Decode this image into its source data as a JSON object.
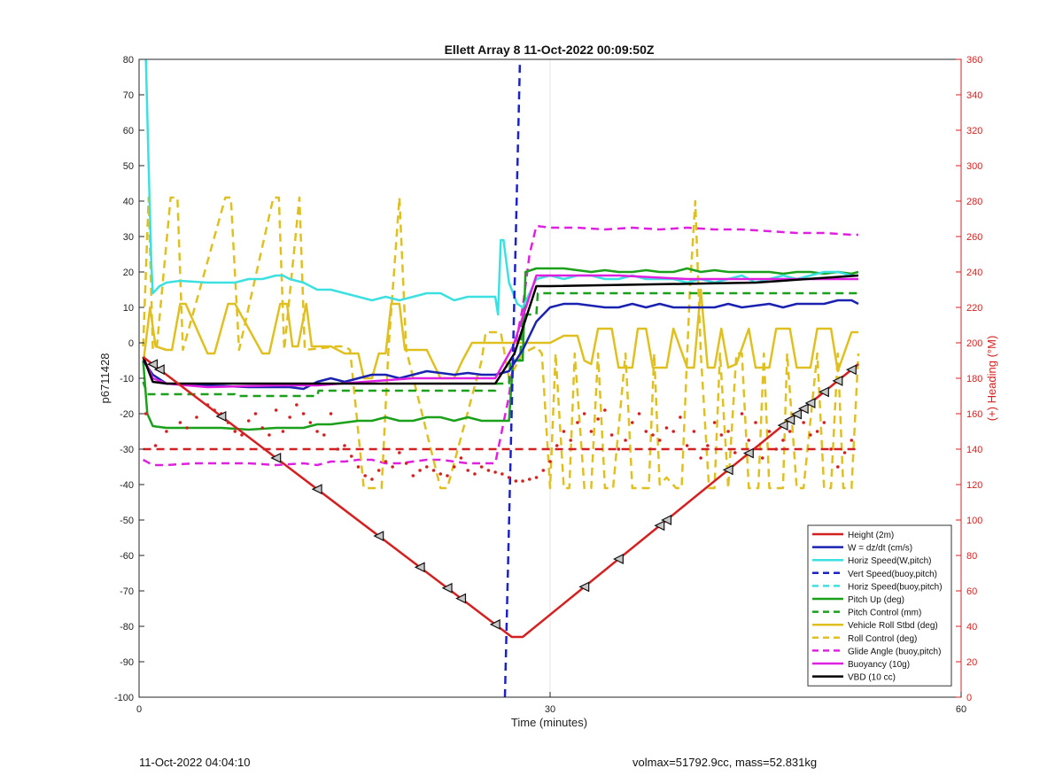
{
  "chart_data": {
    "type": "line",
    "title": "Ellett Array 8 11-Oct-2022 00:09:50Z",
    "xlabel": "Time (minutes)",
    "ylabel": "p6711428",
    "y2label": "(+) Heading (°M)",
    "xlim": [
      0,
      60
    ],
    "ylim": [
      -100,
      80
    ],
    "y2lim": [
      0,
      360
    ],
    "xticks": [
      0,
      30,
      60
    ],
    "yticks": [
      -100,
      -90,
      -80,
      -70,
      -60,
      -50,
      -40,
      -30,
      -20,
      -10,
      0,
      10,
      20,
      30,
      40,
      50,
      60,
      70,
      80
    ],
    "y2ticks": [
      0,
      20,
      40,
      60,
      80,
      100,
      120,
      140,
      160,
      180,
      200,
      220,
      240,
      260,
      280,
      300,
      320,
      340,
      360
    ],
    "grid": true,
    "legend_position": "bottom-right",
    "colors": {
      "height": "#d42020",
      "w": "#1a22b0",
      "horiz_w": "#3de0e0",
      "vert_buoy": "#1a22c8",
      "horiz_buoy": "#3de0e0",
      "pitch": "#1aa01a",
      "pitch_ctrl": "#1aa01a",
      "roll": "#e0c020",
      "roll_ctrl": "#e0c020",
      "glide": "#e020e0",
      "buoyancy": "#e020e0",
      "vbd": "#000000",
      "heading": "#d42020",
      "y2axis": "#d42020"
    },
    "series": [
      {
        "key": "height",
        "name": "Height (2m)",
        "style": "solid",
        "axis": "left",
        "x": [
          0.3,
          27.2,
          28,
          52.5
        ],
        "y": [
          -4,
          -83,
          -83,
          -6
        ]
      },
      {
        "key": "w",
        "name": "W = dz/dt (cm/s)",
        "style": "solid",
        "axis": "left",
        "x": [
          0.3,
          1,
          2,
          5,
          8,
          11,
          12,
          13,
          14,
          15,
          16,
          17,
          18,
          19,
          20,
          21,
          22,
          23,
          24,
          25,
          26,
          27,
          28,
          29,
          30,
          31,
          32,
          33,
          34,
          35,
          36,
          37,
          38,
          39,
          40,
          41,
          42,
          43,
          44,
          45,
          46,
          47,
          48,
          49,
          50,
          51,
          52,
          52.5
        ],
        "y": [
          -5,
          -9,
          -11.5,
          -12,
          -12.5,
          -12.5,
          -13,
          -11,
          -10,
          -11,
          -10,
          -9,
          -9,
          -10,
          -9,
          -8,
          -8.5,
          -9,
          -8.5,
          -9,
          -9,
          -8,
          -2,
          6,
          10,
          11,
          11,
          10.5,
          10,
          10,
          11,
          10,
          11,
          10,
          10,
          10,
          10,
          11,
          10,
          10.5,
          11,
          10,
          11,
          11,
          11,
          12,
          12,
          11
        ]
      },
      {
        "key": "horiz_w",
        "name": "Horiz Speed(W,pitch)",
        "style": "solid",
        "axis": "left",
        "x": [
          0.5,
          0.7,
          0.9,
          1,
          1.5,
          2,
          3,
          5,
          7,
          8,
          9,
          10,
          10.5,
          11,
          12,
          13,
          14,
          15,
          16,
          17,
          18,
          19,
          20,
          21,
          22,
          23,
          24,
          25,
          25.5,
          26,
          26.2,
          26.4,
          26.6,
          27,
          27.3,
          27.6,
          28,
          29,
          30,
          31,
          32,
          33,
          34,
          35,
          36,
          37,
          38,
          39,
          40,
          41,
          42,
          43,
          44,
          45,
          46,
          47,
          48,
          49,
          50,
          51,
          52
        ],
        "y": [
          80,
          50,
          22,
          14,
          16,
          17,
          17.5,
          17,
          17,
          18,
          18,
          19,
          19,
          18,
          17,
          15,
          15,
          14,
          13,
          12,
          13,
          12,
          13,
          14,
          14,
          12,
          13,
          13,
          13,
          13,
          8,
          29,
          29,
          17,
          14,
          11,
          10,
          18,
          19,
          18,
          19,
          19,
          18,
          18,
          19,
          18,
          18,
          18,
          17,
          18,
          17,
          18,
          19,
          17,
          18,
          19,
          18,
          19,
          20,
          20,
          19
        ]
      },
      {
        "key": "vert_buoy",
        "name": "Vert Speed(buoy,pitch)",
        "style": "dashed",
        "axis": "left",
        "x": [
          26.7,
          27.8
        ],
        "y": [
          -100,
          80
        ]
      },
      {
        "key": "horiz_buoy",
        "name": "Horiz Speed(buoy,pitch)",
        "style": "dashed",
        "axis": "left",
        "x": [],
        "y": []
      },
      {
        "key": "pitch",
        "name": "Pitch Up (deg)",
        "style": "solid",
        "axis": "left",
        "x": [
          0.3,
          0.6,
          1,
          2,
          4,
          6,
          8,
          10,
          12,
          13,
          14,
          15,
          16,
          17,
          18,
          19,
          20,
          21,
          22,
          23,
          24,
          25,
          26,
          27,
          27.3,
          28,
          28.2,
          29,
          30,
          31,
          32,
          33,
          34,
          35,
          36,
          37,
          38,
          39,
          40,
          41,
          42,
          43,
          44,
          45,
          46,
          47,
          48,
          49,
          50,
          51,
          52,
          52.5
        ],
        "y": [
          -5,
          -20,
          -23.5,
          -24,
          -24,
          -24,
          -24.5,
          -24,
          -24,
          -23,
          -23,
          -22.5,
          -22,
          -22,
          -21,
          -22,
          -22,
          -21,
          -21,
          -22,
          -21,
          -22,
          -22,
          -22,
          -5,
          -5,
          20,
          21,
          21,
          21,
          20.5,
          20,
          20.5,
          20,
          20,
          20.5,
          20,
          20,
          21,
          20,
          20.5,
          20,
          20,
          20,
          20,
          19.5,
          20,
          20,
          19.5,
          20,
          19.5,
          20
        ]
      },
      {
        "key": "pitch_ctrl",
        "name": "Pitch Control (mm)",
        "style": "dashed",
        "axis": "left",
        "x": [
          0.3,
          0.6,
          7,
          7.1,
          13,
          13.1,
          26,
          26.1,
          27,
          27.1,
          27.8,
          28,
          29,
          29.1,
          52.5
        ],
        "y": [
          -11,
          -14.5,
          -14.5,
          -15,
          -15,
          -13.5,
          -13.5,
          -11.5,
          -11.5,
          -5,
          -5,
          8,
          8,
          14,
          14
        ]
      },
      {
        "key": "roll",
        "name": "Vehicle Roll Stbd (deg)",
        "style": "solid",
        "axis": "left",
        "x": [
          0.3,
          0.8,
          1.2,
          2,
          2.4,
          3,
          3.4,
          5,
          5.5,
          6.5,
          7,
          9,
          9.5,
          10.3,
          10.8,
          11.2,
          11.6,
          12.2,
          12.6,
          13.5,
          14,
          15,
          16,
          16.4,
          17,
          17.5,
          18,
          18.4,
          19,
          19.4,
          20,
          21,
          22,
          23,
          23.6,
          24.3,
          25,
          26,
          27,
          28,
          29,
          30,
          31,
          32,
          32.5,
          33,
          33.5,
          34.5,
          35,
          36,
          36.4,
          37,
          37.5,
          38.5,
          39,
          40,
          40.5,
          41,
          41.5,
          42,
          42.5,
          43,
          43.6,
          44.5,
          45,
          46,
          46.5,
          47.5,
          48,
          49,
          49.5,
          50.5,
          51,
          52,
          52.5
        ],
        "y": [
          -6,
          10,
          -1,
          -2,
          -2,
          11,
          11,
          -3,
          -3,
          11,
          11,
          -3,
          -3,
          11,
          11,
          -1,
          -1,
          11,
          -1,
          -1,
          -1,
          -3,
          -3,
          -10,
          -10,
          -3,
          -3,
          11,
          11,
          -2,
          -2,
          -2,
          -10,
          -10,
          -5,
          0,
          0,
          0,
          0,
          0,
          0,
          0,
          2,
          2,
          -5,
          -6,
          4,
          4,
          -7,
          -7,
          4,
          4,
          -7,
          -7,
          4,
          -7,
          -7,
          15,
          -7,
          -7,
          4,
          -7,
          -6,
          4,
          -7,
          -7,
          4,
          4,
          -7,
          -7,
          4,
          4,
          -8,
          3,
          3
        ]
      },
      {
        "key": "roll_ctrl",
        "name": "Roll Control (deg)",
        "style": "dashed",
        "axis": "left",
        "x": [
          0.3,
          0.7,
          1,
          1.3,
          2.3,
          2.8,
          3.2,
          6.3,
          6.7,
          7.3,
          9.8,
          10.2,
          10.6,
          11.7,
          12.1,
          14.5,
          15,
          15.4,
          16.4,
          17.7,
          18.2,
          19,
          19.5,
          22,
          22.5,
          25,
          25.3,
          26.4,
          27,
          28,
          29,
          29.4,
          30,
          30.4,
          31,
          31.4,
          31.8,
          32.5,
          33,
          33.5,
          34,
          34.6,
          35.5,
          36,
          37.2,
          37.6,
          38,
          38.5,
          39.2,
          39.6,
          40.2,
          40.6,
          41,
          41.6,
          42,
          42.4,
          43,
          43.6,
          44,
          44.5,
          45.2,
          45.6,
          46,
          47,
          47.3,
          48,
          48.5,
          49.5,
          50,
          50.5,
          51,
          51.4,
          52,
          52.5
        ],
        "y": [
          -1,
          41,
          -2,
          -1,
          41,
          41,
          -2,
          41,
          41,
          -2,
          41,
          41,
          -2,
          41,
          -2,
          -1,
          -1,
          -2,
          -41,
          -41,
          -2,
          41,
          -2,
          -41,
          -41,
          -5,
          3,
          3,
          -10,
          -3,
          -1,
          -3,
          -41,
          -3,
          -41,
          -41,
          -3,
          -41,
          -41,
          -3,
          -41,
          -41,
          -3,
          -41,
          -41,
          -3,
          -40,
          -38,
          -41,
          -41,
          15,
          40,
          -3,
          -41,
          -41,
          -3,
          -41,
          -3,
          -3,
          -41,
          -41,
          -3,
          -41,
          -41,
          -3,
          -41,
          -41,
          -3,
          -41,
          -41,
          -3,
          -41,
          -41,
          -3
        ]
      },
      {
        "key": "glide",
        "name": "Glide Angle (buoy,pitch)",
        "style": "dashed",
        "axis": "left",
        "x": [
          0.3,
          1,
          2,
          4,
          6,
          8,
          10,
          12,
          13,
          14,
          15,
          16,
          17,
          18,
          19,
          20,
          21,
          22,
          23,
          24,
          25,
          26,
          27,
          27.5,
          28,
          28.5,
          29,
          30,
          32,
          34,
          36,
          38,
          40,
          42,
          44,
          46,
          48,
          50,
          52,
          52.5
        ],
        "y": [
          -33,
          -34.5,
          -34.5,
          -34,
          -34,
          -34,
          -34.5,
          -34,
          -34.5,
          -33.5,
          -33.5,
          -33,
          -33,
          -34,
          -34,
          -33.5,
          -33,
          -33,
          -33.5,
          -34,
          -34,
          -34,
          -15,
          0,
          10,
          25,
          33,
          32.5,
          32.5,
          32,
          32.5,
          32,
          32.5,
          32,
          32,
          31.5,
          31,
          31,
          30.5,
          30.5
        ]
      },
      {
        "key": "buoyancy",
        "name": "Buoyancy (10g)",
        "style": "solid",
        "axis": "left",
        "x": [
          0.3,
          1,
          2,
          5,
          10,
          13,
          20,
          26,
          27.3,
          29,
          30,
          35,
          40,
          45,
          50,
          52.5
        ],
        "y": [
          -4,
          -10,
          -11.5,
          -12.5,
          -12,
          -12,
          -10,
          -10,
          -1,
          19,
          19,
          19,
          18,
          18,
          18,
          18
        ]
      },
      {
        "key": "vbd",
        "name": "VBD (10 cc)",
        "style": "solid",
        "axis": "left",
        "x": [
          0.3,
          1,
          2,
          10,
          20,
          26,
          27.4,
          29,
          30,
          45,
          52.5
        ],
        "y": [
          -4,
          -11,
          -11.5,
          -11.5,
          -11.5,
          -11.5,
          -3,
          16,
          16,
          17,
          19
        ]
      },
      {
        "key": "heading",
        "name": "",
        "style": "dashed",
        "axis": "right",
        "x": [
          0.3,
          52.5
        ],
        "y": [
          140,
          140
        ]
      }
    ],
    "heading_points": {
      "x": [
        0.5,
        1.2,
        2,
        3,
        3.5,
        4.2,
        5,
        5.5,
        6,
        6.5,
        7,
        7.5,
        8,
        8.5,
        9,
        9.5,
        10,
        10.5,
        11,
        11.5,
        12,
        12.5,
        13,
        13.5,
        14,
        14.5,
        15,
        15.5,
        16,
        16.5,
        17,
        17.5,
        18,
        18.5,
        19,
        19.5,
        20,
        20.5,
        21,
        21.5,
        22,
        22.5,
        23,
        23.5,
        24,
        24.5,
        25,
        25.5,
        26,
        26.5,
        27,
        27.5,
        28,
        28.5,
        29,
        29.5,
        30,
        30.5,
        31,
        31.5,
        32,
        32.5,
        33,
        33.5,
        34,
        34.5,
        35,
        35.5,
        36,
        36.5,
        37,
        37.5,
        38,
        38.5,
        39,
        39.5,
        40,
        40.5,
        41,
        41.5,
        42,
        42.5,
        43,
        43.5,
        44,
        44.5,
        45,
        45.5,
        46,
        46.5,
        47,
        47.5,
        48,
        48.5,
        49,
        49.5,
        50,
        50.5,
        51,
        51.5,
        52
      ],
      "y": [
        160,
        142,
        150,
        155,
        152,
        158,
        165,
        162,
        160,
        155,
        150,
        148,
        156,
        160,
        152,
        148,
        162,
        150,
        158,
        165,
        160,
        155,
        150,
        148,
        160,
        140,
        142,
        136,
        130,
        125,
        123,
        128,
        133,
        130,
        138,
        132,
        125,
        128,
        130,
        128,
        126,
        125,
        130,
        135,
        128,
        126,
        130,
        128,
        127,
        126,
        124,
        122,
        122,
        123,
        124,
        128,
        133,
        142,
        150,
        145,
        155,
        160,
        150,
        157,
        162,
        148,
        140,
        145,
        155,
        160,
        150,
        148,
        145,
        152,
        150,
        158,
        142,
        150,
        135,
        142,
        155,
        148,
        150,
        138,
        160,
        145,
        155,
        135,
        150,
        140,
        145,
        150,
        160,
        155,
        148,
        150,
        155,
        140,
        130,
        138,
        145
      ]
    },
    "height_markers_x": [
      1,
      1.5,
      6,
      10,
      13,
      17.5,
      20.5,
      22.5,
      23.5,
      26,
      32.5,
      35,
      38,
      38.5,
      43,
      44.5,
      47,
      47.5,
      48,
      48.5,
      49,
      50,
      51,
      52
    ],
    "legend_order": [
      "height",
      "w",
      "horiz_w",
      "vert_buoy",
      "horiz_buoy",
      "pitch",
      "pitch_ctrl",
      "roll",
      "roll_ctrl",
      "glide",
      "buoyancy",
      "vbd"
    ]
  },
  "footer": {
    "timestamp": "11-Oct-2022 04:04:10",
    "summary": "volmax=51792.9cc, mass=52.831kg"
  }
}
